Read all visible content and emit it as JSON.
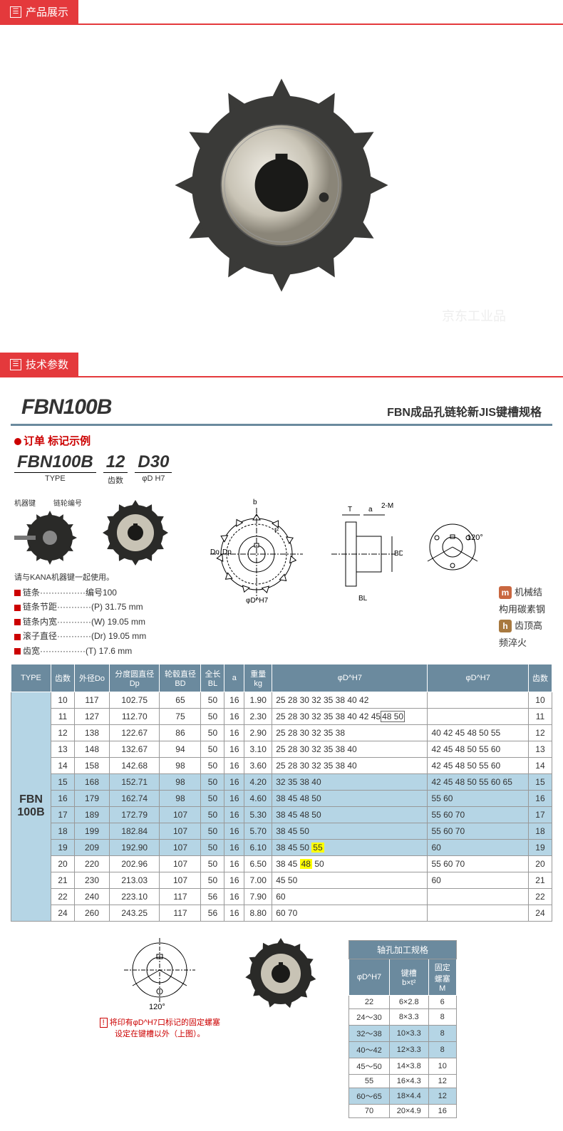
{
  "sections": {
    "display": "产品展示",
    "params": "技术参数"
  },
  "product_code": "FBN100B",
  "subtitle": "FBN成品孔链轮新JIS键槽规格",
  "watermark": "京东工业品",
  "order": {
    "label": "订单 标记示例",
    "parts": [
      {
        "big": "FBN100B",
        "small": "TYPE"
      },
      {
        "big": "12",
        "small": "齿数"
      },
      {
        "big": "D30",
        "small": "φD H7"
      }
    ],
    "arrows": {
      "left": "机器键",
      "right": "链轮编号"
    },
    "note": "请与KANA机器键一起使用。"
  },
  "specs": [
    {
      "k": "链条",
      "v": "编号100"
    },
    {
      "k": "链条节距",
      "v": "(P) 31.75 mm"
    },
    {
      "k": "链条内宽",
      "v": "(W) 19.05 mm"
    },
    {
      "k": "滚子直径",
      "v": "(Dr) 19.05 mm"
    },
    {
      "k": "齿宽",
      "v": "(T) 17.6  mm"
    }
  ],
  "legend": [
    {
      "badge": "m",
      "text": "机械结构用碳素钢"
    },
    {
      "badge": "h",
      "text": "齿顶高频淬火"
    }
  ],
  "diagram_labels": {
    "b": "b",
    "t": "t²",
    "Do": "Do",
    "Dp": "Dp",
    "phD": "φD^H7",
    "T": "T",
    "a": "a",
    "2M": "2-M",
    "BD": "BD",
    "BL": "BL",
    "angle": "120°"
  },
  "table": {
    "headers": [
      "TYPE",
      "齿数",
      "外径Do",
      "分度圆直径\nDp",
      "轮毂直径\nBD",
      "全长\nBL",
      "a",
      "重量\nkg",
      "φD^H7",
      "φD^H7",
      "齿数"
    ],
    "type_label": "FBN\n100B",
    "rows": [
      {
        "hl": false,
        "c": [
          "10",
          "117",
          "102.75",
          "65",
          "50",
          "16",
          "1.90",
          "25 28 30 32 35 38 40 42",
          "",
          "10"
        ]
      },
      {
        "hl": false,
        "c": [
          "11",
          "127",
          "112.70",
          "75",
          "50",
          "16",
          "2.30",
          {
            "text": "25 28 30 32 35 38 40 42 45",
            "boxed": "48 50"
          },
          "",
          "11"
        ]
      },
      {
        "hl": false,
        "c": [
          "12",
          "138",
          "122.67",
          "86",
          "50",
          "16",
          "2.90",
          "25 28 30 32 35 38",
          "40 42 45 48 50 55",
          "12"
        ]
      },
      {
        "hl": false,
        "c": [
          "13",
          "148",
          "132.67",
          "94",
          "50",
          "16",
          "3.10",
          "25 28 30 32 35 38 40",
          "42 45 48 50 55 60",
          "13"
        ]
      },
      {
        "hl": false,
        "c": [
          "14",
          "158",
          "142.68",
          "98",
          "50",
          "16",
          "3.60",
          "25 28 30 32 35 38 40",
          "42 45 48 50 55 60",
          "14"
        ]
      },
      {
        "hl": true,
        "c": [
          "15",
          "168",
          "152.71",
          "98",
          "50",
          "16",
          "4.20",
          "32 35 38 40",
          "42 45 48 50 55 60 65",
          "15"
        ]
      },
      {
        "hl": true,
        "c": [
          "16",
          "179",
          "162.74",
          "98",
          "50",
          "16",
          "4.60",
          "38 45 48 50",
          "55 60",
          "16"
        ]
      },
      {
        "hl": true,
        "c": [
          "17",
          "189",
          "172.79",
          "107",
          "50",
          "16",
          "5.30",
          "38 45 48 50",
          "55 60 70",
          "17"
        ]
      },
      {
        "hl": true,
        "c": [
          "18",
          "199",
          "182.84",
          "107",
          "50",
          "16",
          "5.70",
          "38 45 50",
          "55 60 70",
          "18"
        ]
      },
      {
        "hl": true,
        "c": [
          "19",
          "209",
          "192.90",
          "107",
          "50",
          "16",
          "6.10",
          {
            "text": "38 45 50 ",
            "yellow": "55"
          },
          "60",
          "19"
        ]
      },
      {
        "hl": false,
        "c": [
          "20",
          "220",
          "202.96",
          "107",
          "50",
          "16",
          "6.50",
          {
            "text": "38 45 ",
            "yellow": "48",
            "after": " 50"
          },
          "55 60 70",
          "20"
        ]
      },
      {
        "hl": false,
        "c": [
          "21",
          "230",
          "213.03",
          "107",
          "50",
          "16",
          "7.00",
          "45 50",
          "60",
          "21"
        ]
      },
      {
        "hl": false,
        "c": [
          "22",
          "240",
          "223.10",
          "117",
          "56",
          "16",
          "7.90",
          "60",
          "",
          "22"
        ]
      },
      {
        "hl": false,
        "c": [
          "24",
          "260",
          "243.25",
          "117",
          "56",
          "16",
          "8.80",
          "60 70",
          "",
          "24"
        ]
      }
    ]
  },
  "bottom": {
    "note": "将印有φD^H7口标记的固定螺塞设定在键槽以外（上图）。",
    "table_title": "轴孔加工规格",
    "headers": [
      "φD^H7",
      "键槽\nb×t²",
      "固定\n螺塞\nM"
    ],
    "rows": [
      {
        "hl": false,
        "c": [
          "22",
          "6×2.8",
          "6"
        ]
      },
      {
        "hl": false,
        "c": [
          "24～30",
          "8×3.3",
          "8"
        ]
      },
      {
        "hl": true,
        "c": [
          "32～38",
          "10×3.3",
          "8"
        ]
      },
      {
        "hl": true,
        "c": [
          "40～42",
          "12×3.3",
          "8"
        ]
      },
      {
        "hl": false,
        "c": [
          "45～50",
          "14×3.8",
          "10"
        ]
      },
      {
        "hl": false,
        "c": [
          "55",
          "16×4.3",
          "12"
        ]
      },
      {
        "hl": true,
        "c": [
          "60～65",
          "18×4.4",
          "12"
        ]
      },
      {
        "hl": false,
        "c": [
          "70",
          "20×4.9",
          "16"
        ]
      }
    ]
  }
}
